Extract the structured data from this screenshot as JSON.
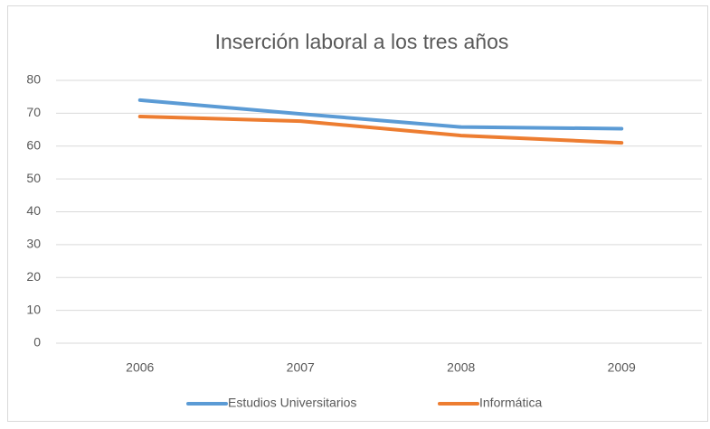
{
  "chart_data": {
    "type": "line",
    "title": "Inserción laboral a los tres años",
    "categories": [
      "2006",
      "2007",
      "2008",
      "2009"
    ],
    "series": [
      {
        "name": "Estudios Universitarios",
        "color": "#5b9bd5",
        "values": [
          74,
          69.8,
          65.8,
          65.3
        ]
      },
      {
        "name": "Informática",
        "color": "#ed7d31",
        "values": [
          69,
          67.6,
          63.2,
          61
        ]
      }
    ],
    "ylim": [
      0,
      80
    ],
    "yticks": [
      0,
      10,
      20,
      30,
      40,
      50,
      60,
      70,
      80
    ],
    "grid": true,
    "legend": "bottom"
  }
}
